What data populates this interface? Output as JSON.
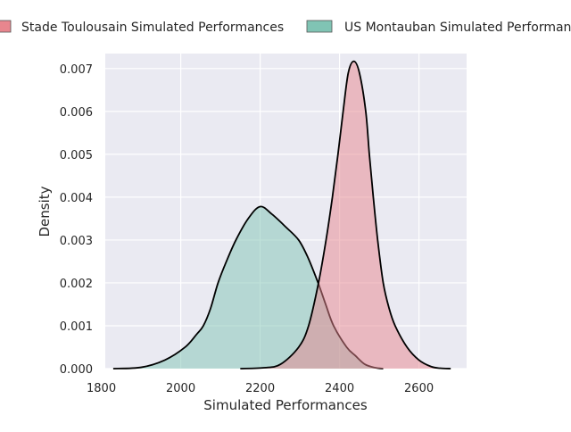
{
  "chart_data": {
    "type": "area",
    "title": "",
    "xlabel": "Simulated Performances",
    "ylabel": "Density",
    "xlim": [
      1810,
      2720
    ],
    "ylim": [
      0,
      0.00735
    ],
    "xticks": [
      1800,
      2000,
      2200,
      2400,
      2600
    ],
    "xtick_labels": [
      "1800",
      "2000",
      "2200",
      "2400",
      "2600"
    ],
    "yticks": [
      0,
      0.001,
      0.002,
      0.003,
      0.004,
      0.005,
      0.006,
      0.007
    ],
    "ytick_labels": [
      "0.000",
      "0.001",
      "0.002",
      "0.003",
      "0.004",
      "0.005",
      "0.006",
      "0.007"
    ],
    "grid": true,
    "legend_position": "top",
    "series": [
      {
        "name": "Stade Toulousain Simulated Performances",
        "color": "#e8868e",
        "x": [
          2150,
          2210,
          2251,
          2297,
          2322,
          2347,
          2366,
          2382,
          2396,
          2409,
          2422,
          2436,
          2450,
          2466,
          2475,
          2485,
          2496,
          2510,
          2525,
          2540,
          2570,
          2600,
          2630,
          2653,
          2680
        ],
        "y": [
          0,
          2e-05,
          0.0001,
          0.0005,
          0.001,
          0.002,
          0.003,
          0.004,
          0.005,
          0.006,
          0.0069,
          0.00717,
          0.0069,
          0.006,
          0.005,
          0.004,
          0.003,
          0.002,
          0.0014,
          0.001,
          0.0005,
          0.0002,
          5e-05,
          1e-05,
          0
        ]
      },
      {
        "name": "US Montauban Simulated Performances",
        "color": "#80c4b4",
        "x": [
          1830,
          1900,
          1960,
          2011,
          2040,
          2057,
          2075,
          2094,
          2115,
          2139,
          2170,
          2200,
          2230,
          2265,
          2297,
          2320,
          2346,
          2365,
          2385,
          2418,
          2440,
          2464,
          2490,
          2510
        ],
        "y": [
          0,
          3e-05,
          0.0002,
          0.0005,
          0.0008,
          0.001,
          0.0014,
          0.002,
          0.0025,
          0.003,
          0.0035,
          0.00378,
          0.0036,
          0.0033,
          0.003,
          0.0026,
          0.002,
          0.0015,
          0.001,
          0.0005,
          0.0003,
          0.0001,
          2e-05,
          0
        ]
      }
    ]
  }
}
